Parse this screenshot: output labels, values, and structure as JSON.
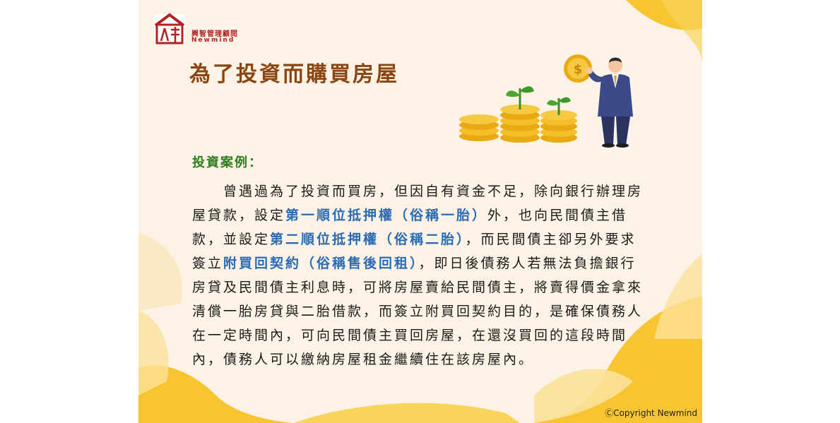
{
  "logo": {
    "name_cn": "興智管理顧問",
    "name_en": "Newmind",
    "mark_text": "人計"
  },
  "title": "為了投資而購買房屋",
  "subheading": "投資案例：",
  "paragraph": {
    "t1": "曾遇過為了投資而買房，但因自有資金不足，除向銀行辦理房屋貸款，設定",
    "h1": "第一順位抵押權（俗稱一胎）",
    "t2": "外，也向民間債主借款，並設定",
    "h2": "第二順位抵押權（俗稱二胎）",
    "t3": "，而民間債主卻另外要求簽立",
    "h3": "附買回契約（俗稱售後回租）",
    "t4": "，即日後債務人若無法負擔銀行房貸及民間債主利息時，可將房屋賣給民間債主，將賣得價金拿來清償一胎房貸與二胎借款，而簽立附買回契約目的，是確保債務人在一定時間內，可向民間債主買回房屋，在還沒買回的這段時間內，債務人可以繳納房屋租金繼續住在該房屋內。"
  },
  "illustration": {
    "coin_symbol": "$"
  },
  "copyright": "ⒸCopyright Newmind",
  "colors": {
    "background": "#fcf3e6",
    "accent_yellow": "#f7c531",
    "title": "#8b4513",
    "subheading": "#2e7d1e",
    "highlight": "#2a6bb3",
    "logo_red": "#b22222"
  }
}
